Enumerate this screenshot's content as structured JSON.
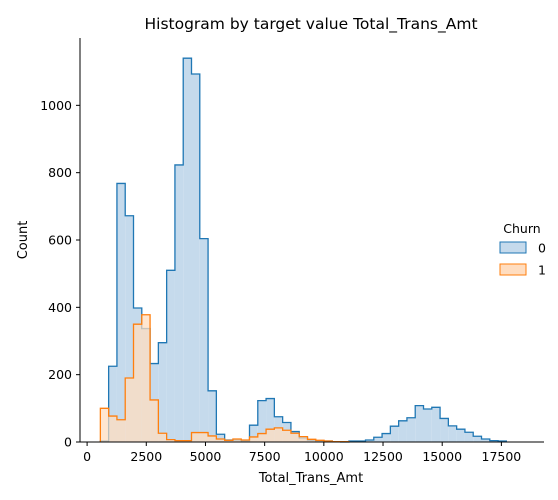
{
  "chart_data": {
    "type": "histogram",
    "title": "Histogram by target value Total_Trans_Amt",
    "xlabel": "Total_Trans_Amt",
    "ylabel": "Count",
    "xlim": [
      -300,
      19300
    ],
    "ylim": [
      0,
      1200
    ],
    "xticks": [
      0,
      2500,
      5000,
      7500,
      10000,
      12500,
      15000,
      17500
    ],
    "yticks": [
      0,
      200,
      400,
      600,
      800,
      1000
    ],
    "bin_width": 350,
    "legend": {
      "title": "Churn",
      "placement": "right"
    },
    "series": [
      {
        "name": "0",
        "color": "#1f77b4",
        "fill": "#c5daec",
        "start": 560,
        "counts": [
          3,
          225,
          768,
          672,
          398,
          337,
          233,
          295,
          510,
          823,
          1140,
          1093,
          604,
          152,
          23,
          6,
          6,
          3,
          50,
          123,
          129,
          75,
          58,
          31,
          12,
          5,
          3,
          3,
          1,
          0,
          3,
          3,
          6,
          14,
          25,
          47,
          63,
          72,
          108,
          98,
          103,
          70,
          48,
          38,
          29,
          17,
          9,
          4,
          3
        ]
      },
      {
        "name": "1",
        "color": "#ff7f0e",
        "fill": "#ffddc0",
        "start": 560,
        "counts": [
          100,
          77,
          66,
          190,
          350,
          378,
          125,
          26,
          7,
          4,
          4,
          28,
          28,
          18,
          9,
          5,
          9,
          6,
          15,
          25,
          38,
          42,
          35,
          26,
          16,
          8,
          5,
          3,
          1,
          1
        ]
      }
    ]
  }
}
